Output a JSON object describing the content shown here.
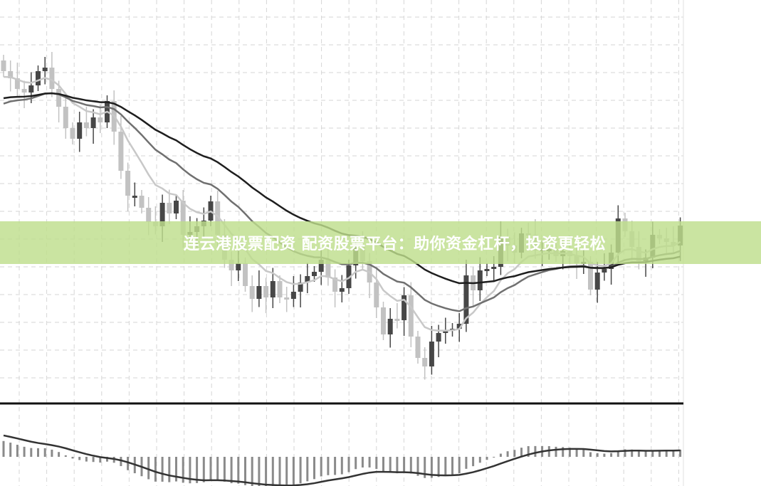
{
  "banner": {
    "text": "连云港股票配资 配资股票平台：助你资金杠杆，投资更轻松"
  },
  "colors": {
    "up": "#474747",
    "down": "#c2c2c2",
    "ma_fast": "#c8c8c8",
    "ma_mid": "#707070",
    "ma_slow": "#1e1e1e",
    "grid": "#d6d6d6",
    "banner": "#bede8c",
    "macd_bar": "#8a8a8a"
  },
  "chart_data": [
    {
      "type": "candlestick",
      "grid": true,
      "ylim": [
        0,
        60
      ],
      "moving_averages": [
        "fast",
        "mid",
        "slow"
      ],
      "close": [
        50,
        49,
        47.5,
        47,
        48,
        50,
        50.5,
        47.5,
        45,
        42,
        40.5,
        42.8,
        42,
        43.5,
        42.8,
        45.8,
        41.5,
        36,
        32.5,
        32.5,
        30.8,
        28.8,
        28.2,
        31.5,
        30,
        31.8,
        27,
        27.4,
        28.2,
        29,
        31.7,
        27,
        23.5,
        22,
        23,
        19.8,
        18,
        19.8,
        18.2,
        20.5,
        18.2,
        18,
        19,
        20.3,
        21.2,
        21.8,
        23.5,
        21,
        19,
        19.5,
        22.7,
        25.3,
        23.3,
        20.3,
        16.8,
        13,
        15.2,
        15,
        18.5,
        12.7,
        9.7,
        8.5,
        12,
        13.2,
        13.5,
        13.8,
        14.5,
        21.3,
        19.2,
        22,
        22.2,
        22.5,
        26.7,
        25.5,
        24.5,
        27.2,
        27,
        24.8,
        25,
        25,
        24,
        24.7,
        24,
        23,
        23.2,
        19.3,
        21.7,
        22.2,
        24.5,
        29.3,
        27.5,
        25.3,
        23.3,
        23.8,
        27,
        26.5,
        26,
        25.5,
        28.3
      ]
    },
    {
      "type": "bar",
      "indicator": "MACD",
      "series": [
        "histogram",
        "signal line"
      ]
    }
  ]
}
